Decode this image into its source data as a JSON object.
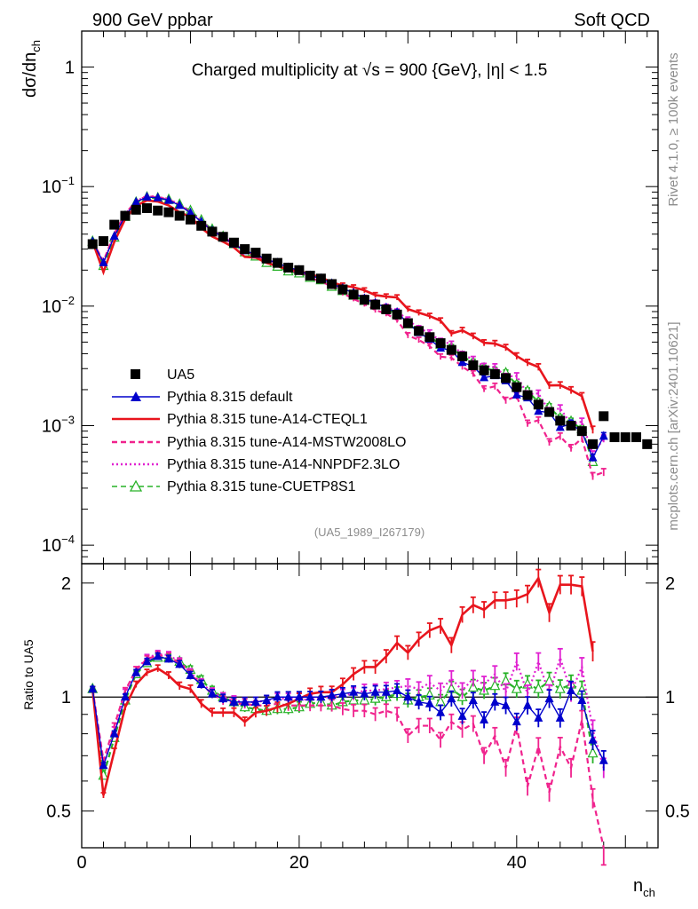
{
  "header": {
    "left": "900 GeV ppbar",
    "right": "Soft QCD",
    "side_top": "Rivet 4.1.0, ≥ 100k events",
    "side_bottom": "mcplots.cern.ch [arXiv:2401.10621]"
  },
  "chart_data": {
    "type": "line",
    "title": "Charged multiplicity at √s = 900 {GeV}, |η| < 1.5",
    "reference": "(UA5_1989_I267179)",
    "xlabel": "n",
    "xlabel_sub": "ch",
    "ylabel": "dσ/dn",
    "ylabel_sub": "ch",
    "ratio_ylabel": "Ratio to UA5",
    "xlim": [
      0,
      53
    ],
    "ylim": [
      7e-05,
      2
    ],
    "ratio_ylim": [
      0.4,
      2.25
    ],
    "x_ticks": [
      "0",
      "20",
      "40"
    ],
    "ratio_y_ticks": [
      "0.5",
      "1",
      "2"
    ],
    "y_ticks": [
      {
        "base": "1",
        "exp": ""
      },
      {
        "base": "10",
        "exp": "−1"
      },
      {
        "base": "10",
        "exp": "−2"
      },
      {
        "base": "10",
        "exp": "−3"
      },
      {
        "base": "10",
        "exp": "−4"
      }
    ],
    "data": {
      "name": "UA5",
      "x": [
        1,
        2,
        3,
        4,
        5,
        6,
        7,
        8,
        9,
        10,
        11,
        12,
        13,
        14,
        15,
        16,
        17,
        18,
        19,
        20,
        21,
        22,
        23,
        24,
        25,
        26,
        27,
        28,
        29,
        30,
        31,
        32,
        33,
        34,
        35,
        36,
        37,
        38,
        39,
        40,
        41,
        42,
        43,
        44,
        45,
        46,
        47,
        48,
        49,
        50,
        51,
        52
      ],
      "y": [
        0.033,
        0.035,
        0.048,
        0.057,
        0.064,
        0.066,
        0.063,
        0.061,
        0.057,
        0.053,
        0.047,
        0.042,
        0.038,
        0.034,
        0.03,
        0.028,
        0.025,
        0.023,
        0.021,
        0.02,
        0.018,
        0.017,
        0.0153,
        0.0138,
        0.0125,
        0.0113,
        0.0103,
        0.0094,
        0.0085,
        0.0072,
        0.0062,
        0.0055,
        0.0049,
        0.0043,
        0.0038,
        0.0032,
        0.0029,
        0.0027,
        0.0025,
        0.0021,
        0.0018,
        0.0015,
        0.0013,
        0.0011,
        0.001,
        0.0009,
        0.0007,
        0.0012,
        0.0008,
        0.0008,
        0.0008,
        0.0007
      ]
    },
    "series": [
      {
        "name": "Pythia 8.315 default",
        "color": "#0000cc",
        "style": "solid",
        "marker": "triangle-filled",
        "ratio": [
          1.05,
          0.66,
          0.8,
          1.0,
          1.16,
          1.24,
          1.28,
          1.26,
          1.22,
          1.14,
          1.08,
          1.02,
          0.99,
          0.97,
          0.97,
          0.97,
          0.98,
          1.0,
          1.0,
          1.0,
          1.0,
          1.0,
          1.01,
          1.02,
          1.03,
          1.02,
          1.03,
          1.03,
          1.04,
          1.0,
          0.97,
          0.96,
          0.91,
          0.99,
          0.89,
          0.98,
          0.87,
          0.97,
          0.95,
          0.86,
          0.95,
          0.88,
          0.99,
          0.88,
          1.04,
          0.98,
          0.77,
          0.68
        ]
      },
      {
        "name": "Pythia 8.315 tune-A14-CTEQL1",
        "color": "#e8151d",
        "style": "solid",
        "marker": "none",
        "ratio": [
          1.05,
          0.55,
          0.72,
          0.94,
          1.08,
          1.16,
          1.19,
          1.14,
          1.07,
          1.05,
          0.96,
          0.91,
          0.91,
          0.91,
          0.86,
          0.91,
          0.92,
          0.94,
          0.96,
          0.99,
          1.02,
          1.03,
          1.03,
          1.08,
          1.15,
          1.2,
          1.2,
          1.28,
          1.39,
          1.31,
          1.42,
          1.5,
          1.54,
          1.37,
          1.65,
          1.75,
          1.7,
          1.8,
          1.8,
          1.82,
          1.87,
          2.06,
          1.67,
          1.98,
          1.98,
          1.96,
          1.32
        ]
      },
      {
        "name": "Pythia 8.315 tune-A14-MSTW2008LO",
        "color": "#f0228d",
        "style": "dashed",
        "marker": "none",
        "ratio": [
          1.05,
          0.68,
          0.84,
          1.04,
          1.18,
          1.26,
          1.29,
          1.28,
          1.23,
          1.15,
          1.08,
          1.02,
          0.98,
          0.96,
          0.96,
          0.95,
          0.95,
          0.96,
          0.95,
          0.95,
          0.95,
          0.95,
          0.95,
          0.93,
          0.92,
          0.92,
          0.9,
          0.92,
          0.9,
          0.79,
          0.84,
          0.84,
          0.77,
          0.86,
          0.82,
          0.85,
          0.7,
          0.79,
          0.65,
          0.84,
          0.58,
          0.74,
          0.56,
          0.74,
          0.65,
          0.87,
          0.54,
          0.34
        ]
      },
      {
        "name": "Pythia 8.315 tune-A14-NNPDF2.3LO",
        "color": "#e020d0",
        "style": "dotted",
        "marker": "none",
        "ratio": [
          1.05,
          0.66,
          0.82,
          1.03,
          1.18,
          1.27,
          1.3,
          1.29,
          1.24,
          1.16,
          1.09,
          1.03,
          1.0,
          0.98,
          0.97,
          0.97,
          0.98,
          0.99,
          0.99,
          0.99,
          0.98,
          1.0,
          1.0,
          1.01,
          1.02,
          1.04,
          1.04,
          1.05,
          1.06,
          1.07,
          1.05,
          1.09,
          1.04,
          1.12,
          1.04,
          1.12,
          1.08,
          1.15,
          1.03,
          1.24,
          1.02,
          1.24,
          1.02,
          1.27,
          1.03,
          1.2,
          0.82,
          0.65
        ]
      },
      {
        "name": "Pythia 8.315 tune-CUETP8S1",
        "color": "#27b227",
        "style": "dashed",
        "marker": "triangle-open",
        "ratio": [
          1.05,
          0.62,
          0.78,
          0.98,
          1.15,
          1.23,
          1.27,
          1.27,
          1.24,
          1.18,
          1.11,
          1.04,
          1.0,
          0.97,
          0.94,
          0.93,
          0.92,
          0.93,
          0.93,
          0.94,
          0.96,
          0.97,
          0.95,
          0.97,
          0.98,
          0.98,
          0.99,
          1.0,
          1.02,
          0.98,
          1.0,
          1.01,
          0.97,
          1.05,
          1.0,
          1.06,
          1.04,
          1.07,
          1.1,
          1.05,
          1.08,
          1.05,
          1.1,
          1.05,
          1.08,
          1.04,
          0.71
        ]
      }
    ]
  }
}
